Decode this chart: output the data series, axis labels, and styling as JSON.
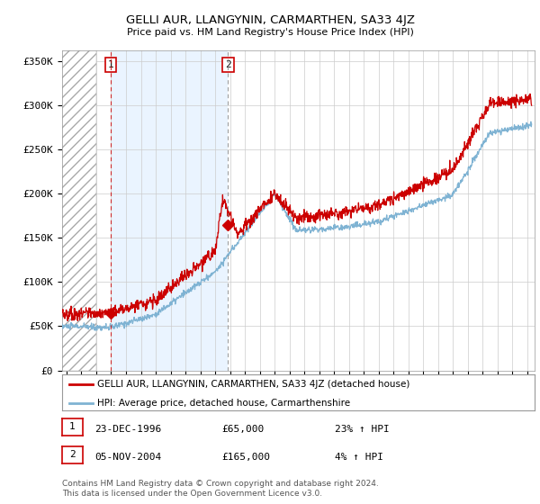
{
  "title": "GELLI AUR, LLANGYNIN, CARMARTHEN, SA33 4JZ",
  "subtitle": "Price paid vs. HM Land Registry's House Price Index (HPI)",
  "ylabel_ticks": [
    "£0",
    "£50K",
    "£100K",
    "£150K",
    "£200K",
    "£250K",
    "£300K",
    "£350K"
  ],
  "ytick_values": [
    0,
    50000,
    100000,
    150000,
    200000,
    250000,
    300000,
    350000
  ],
  "ylim": [
    0,
    362000
  ],
  "xlim_start": 1993.7,
  "xlim_end": 2025.5,
  "sale1": {
    "date_num": 1996.98,
    "price": 65000,
    "label": "1"
  },
  "sale2": {
    "date_num": 2004.87,
    "price": 165000,
    "label": "2"
  },
  "legend_red_label": "GELLI AUR, LLANGYNIN, CARMARTHEN, SA33 4JZ (detached house)",
  "legend_blue_label": "HPI: Average price, detached house, Carmarthenshire",
  "table_rows": [
    {
      "num": "1",
      "date": "23-DEC-1996",
      "price": "£65,000",
      "hpi": "23% ↑ HPI"
    },
    {
      "num": "2",
      "date": "05-NOV-2004",
      "price": "£165,000",
      "hpi": "4% ↑ HPI"
    }
  ],
  "footer": "Contains HM Land Registry data © Crown copyright and database right 2024.\nThis data is licensed under the Open Government Licence v3.0.",
  "red_color": "#cc0000",
  "blue_color": "#7fb3d3",
  "blue_shade_color": "#ddeeff",
  "hatched_bg_end": 1996.0,
  "background_color": "#ffffff",
  "grid_color": "#cccccc"
}
